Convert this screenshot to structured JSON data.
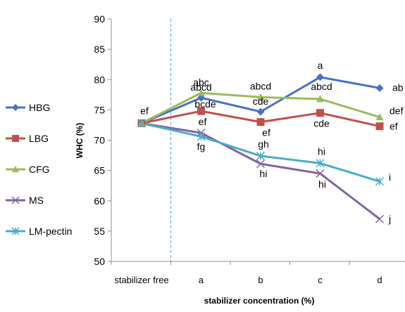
{
  "chart_data": {
    "type": "line",
    "categories": [
      "stabilizer free",
      "a",
      "b",
      "c",
      "d"
    ],
    "xlabel": "stabilizer concentration (%)",
    "ylabel": "WHC (%)",
    "ylim": [
      50,
      90
    ],
    "yticks": [
      50,
      55,
      60,
      65,
      70,
      75,
      80,
      85,
      90
    ],
    "grid": false,
    "legend_position": "left",
    "divider_after_category": "stabilizer free",
    "series": [
      {
        "name": "HBG",
        "color": "#4472C4",
        "marker": "diamond",
        "values": [
          72.8,
          77.0,
          74.7,
          80.4,
          78.6
        ],
        "labels": [
          "",
          "abcd",
          "cde",
          "a",
          "ab"
        ]
      },
      {
        "name": "LBG",
        "color": "#C0504D",
        "marker": "square",
        "values": [
          72.8,
          74.8,
          73.0,
          74.5,
          72.3
        ],
        "labels": [
          "ef",
          "bcde",
          "ef",
          "cde",
          "ef"
        ]
      },
      {
        "name": "CFG",
        "color": "#9BBB59",
        "marker": "triangle",
        "values": [
          72.8,
          77.8,
          77.1,
          76.8,
          73.8
        ],
        "labels": [
          "",
          "abc",
          "abcd",
          "abcd",
          "def"
        ]
      },
      {
        "name": "MS",
        "color": "#8064A2",
        "marker": "x",
        "values": [
          72.8,
          71.2,
          66.1,
          64.5,
          57.0
        ],
        "labels": [
          "",
          "ef",
          "hi",
          "hi",
          "j"
        ]
      },
      {
        "name": "LM-pectin",
        "color": "#4BACC6",
        "marker": "star",
        "values": [
          72.8,
          70.6,
          67.4,
          66.2,
          63.2
        ],
        "labels": [
          "",
          "fg",
          "gh",
          "hi",
          "i"
        ]
      }
    ]
  }
}
